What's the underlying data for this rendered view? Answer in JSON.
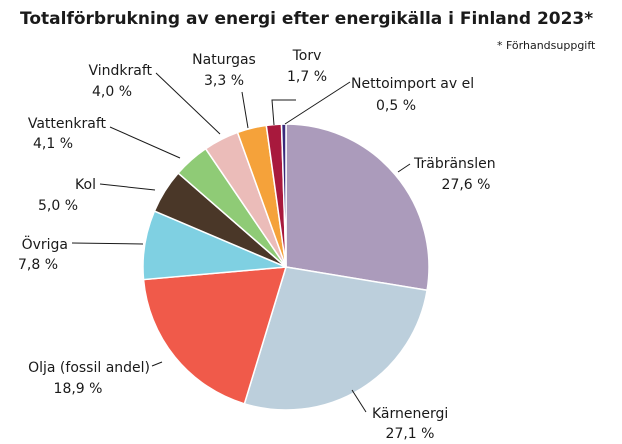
{
  "chart_data": {
    "type": "pie",
    "title": "Totalförbrukning av energi efter energikälla  i Finland 2023*",
    "note": "* Förhandsuppgift",
    "unit": "%",
    "slices": [
      {
        "name": "Träbränslen",
        "value": 27.6,
        "label": "27,6 %",
        "color": "#ab9bbb"
      },
      {
        "name": "Kärnenergi",
        "value": 27.1,
        "label": "27,1 %",
        "color": "#bccfdc"
      },
      {
        "name": "Olja (fossil andel)",
        "value": 18.9,
        "label": "18,9 %",
        "color": "#f05a4a"
      },
      {
        "name": "Övriga",
        "value": 7.8,
        "label": "7,8 %",
        "color": "#7fd0e2"
      },
      {
        "name": "Kol",
        "value": 5.0,
        "label": "5,0 %",
        "color": "#4a3728"
      },
      {
        "name": "Vattenkraft",
        "value": 4.1,
        "label": "4,1 %",
        "color": "#8fcb76"
      },
      {
        "name": "Vindkraft",
        "value": 4.0,
        "label": "4,0 %",
        "color": "#ebbcb9"
      },
      {
        "name": "Naturgas",
        "value": 3.3,
        "label": "3,3 %",
        "color": "#f5a23a"
      },
      {
        "name": "Torv",
        "value": 1.7,
        "label": "1,7 %",
        "color": "#a8193d"
      },
      {
        "name": "Nettoimport av el",
        "value": 0.5,
        "label": "0,5 %",
        "color": "#3b2a7a"
      }
    ],
    "legend": "none"
  }
}
